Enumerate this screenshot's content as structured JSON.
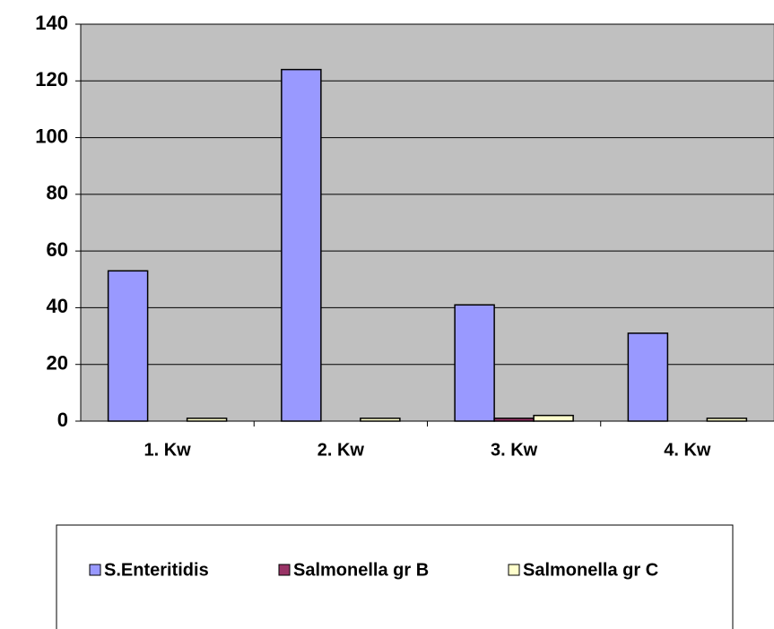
{
  "chart_data": {
    "type": "bar",
    "categories": [
      "1. Kw",
      "2. Kw",
      "3. Kw",
      "4. Kw"
    ],
    "series": [
      {
        "name": "S.Enteritidis",
        "color": "#9999ff",
        "values": [
          53,
          124,
          41,
          31
        ]
      },
      {
        "name": "Salmonella gr B",
        "color": "#993366",
        "values": [
          0,
          0,
          1,
          0
        ]
      },
      {
        "name": "Salmonella gr C",
        "color": "#ffffcc",
        "values": [
          1,
          1,
          2,
          1
        ]
      }
    ],
    "ylim": [
      0,
      140
    ],
    "yticks": [
      0,
      20,
      40,
      60,
      80,
      100,
      120,
      140
    ],
    "grid": true,
    "legend": "bottom",
    "plot_background": "#c0c0c0"
  }
}
